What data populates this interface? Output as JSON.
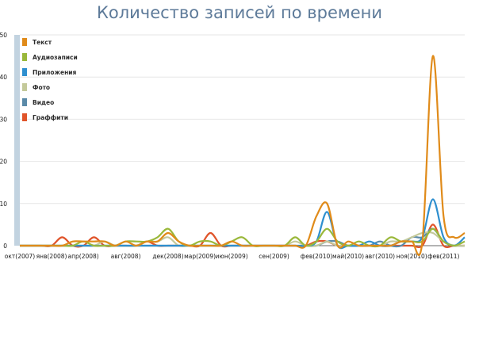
{
  "chart_data": {
    "type": "line",
    "title": "Количество записей по времени",
    "xlabel": "",
    "ylabel": "",
    "ylim": [
      0,
      50
    ],
    "y_ticks": [
      0,
      10,
      20,
      30,
      40,
      50
    ],
    "grid": true,
    "legend_position": "top-left",
    "x_tick_labels": [
      "окт(2007)",
      "янв(2008)",
      "апр(2008)",
      "авг(2008)",
      "дек(2008)",
      "мар(2009)",
      "июн(2009)",
      "сен(2009)",
      "фев(2010)",
      "май(2010)",
      "авг(2010)",
      "ноя(2010)",
      "фев(2011)"
    ],
    "x_tick_index": [
      0,
      3,
      6,
      10,
      14,
      17,
      20,
      24,
      28,
      31,
      34,
      37,
      40
    ],
    "series": [
      {
        "name": "Текст",
        "color": "#e08b1a",
        "values": [
          0,
          0,
          0,
          0,
          0,
          1,
          1,
          1,
          1,
          0,
          1,
          0,
          1,
          1,
          3,
          1,
          0,
          0,
          0,
          0,
          1,
          0,
          0,
          0,
          0,
          0,
          0,
          0,
          7,
          10,
          0,
          1,
          0,
          0,
          0,
          0,
          1,
          1,
          1,
          45,
          7,
          2,
          3
        ]
      },
      {
        "name": "Аудиозаписи",
        "color": "#9ab83a",
        "values": [
          0,
          0,
          0,
          0,
          0,
          0,
          1,
          0,
          0,
          0,
          1,
          1,
          1,
          2,
          4,
          1,
          0,
          1,
          1,
          0,
          1,
          2,
          0,
          0,
          0,
          0,
          2,
          0,
          1,
          4,
          1,
          0,
          1,
          0,
          0,
          2,
          1,
          1,
          1,
          4,
          1,
          0,
          1
        ]
      },
      {
        "name": "Приложения",
        "color": "#2e8fcf",
        "values": [
          0,
          0,
          0,
          0,
          0,
          0,
          0,
          0,
          0,
          0,
          0,
          0,
          0,
          0,
          0,
          0,
          0,
          0,
          0,
          0,
          0,
          0,
          0,
          0,
          0,
          0,
          0,
          0,
          1,
          8,
          0,
          0,
          0,
          1,
          0,
          0,
          1,
          1,
          2,
          11,
          2,
          0,
          2
        ]
      },
      {
        "name": "Фото",
        "color": "#c4c99a",
        "values": [
          0,
          0,
          0,
          0,
          0,
          0,
          0,
          0,
          1,
          0,
          0,
          0,
          1,
          1,
          2,
          0,
          0,
          0,
          0,
          0,
          0,
          0,
          0,
          0,
          0,
          0,
          1,
          0,
          0,
          1,
          0,
          0,
          0,
          0,
          0,
          1,
          1,
          2,
          3,
          3,
          1,
          0,
          0
        ]
      },
      {
        "name": "Видео",
        "color": "#5b8aa8",
        "values": [
          0,
          0,
          0,
          0,
          0,
          0,
          0,
          0,
          0,
          0,
          0,
          0,
          0,
          0,
          0,
          0,
          0,
          0,
          0,
          0,
          0,
          0,
          0,
          0,
          0,
          0,
          0,
          0,
          0,
          1,
          1,
          0,
          0,
          0,
          1,
          0,
          0,
          2,
          2,
          4,
          1,
          0,
          0
        ]
      },
      {
        "name": "Граффити",
        "color": "#e0542a",
        "values": [
          0,
          0,
          0,
          0,
          2,
          0,
          0,
          2,
          0,
          0,
          0,
          0,
          1,
          0,
          0,
          0,
          0,
          0,
          3,
          0,
          0,
          0,
          0,
          0,
          0,
          0,
          0,
          0,
          1,
          1,
          0,
          0,
          0,
          0,
          0,
          0,
          0,
          0,
          0,
          5,
          0,
          0,
          0
        ]
      }
    ]
  }
}
